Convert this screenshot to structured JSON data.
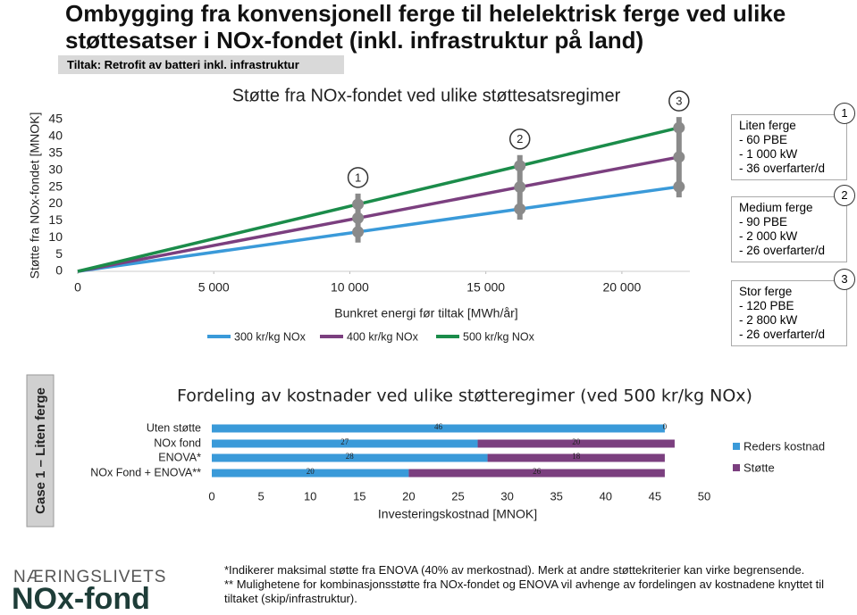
{
  "header": {
    "title": "Ombygging fra konvensjonell ferge til helelektrisk ferge ved ulike støttesatser i NOx-fondet (inkl. infrastruktur på land)",
    "subtitle": "Tiltak: Retrofit av batteri inkl. infrastruktur"
  },
  "chart_data": [
    {
      "type": "line",
      "title": "Støtte fra NOx-fondet ved ulike støttesatsregimer",
      "x_label": "Bunkret energi før tiltak [MWh/år]",
      "y_label": "Støtte fra NOx-fondet [MNOK]",
      "x": [
        0,
        10300,
        16250,
        22100
      ],
      "series": [
        {
          "name": "300 kr/kg NOx",
          "color": "#3a9ad9",
          "values": [
            0,
            11.7,
            18.5,
            25.1
          ]
        },
        {
          "name": "400 kr/kg NOx",
          "color": "#7b3f7f",
          "values": [
            0,
            15.8,
            25.0,
            33.9
          ]
        },
        {
          "name": "500 kr/kg NOx",
          "color": "#1b8c4a",
          "values": [
            0,
            19.9,
            31.3,
            42.6
          ]
        }
      ],
      "annotations": [
        null,
        "1",
        "2",
        "3"
      ],
      "xlim": [
        0,
        22500
      ],
      "ylim": [
        0,
        45
      ],
      "xticks": [
        0,
        {
          "value": 5000,
          "label": "5 000"
        },
        {
          "value": 10000,
          "label": "10 000"
        },
        {
          "value": 15000,
          "label": "15 000"
        },
        {
          "value": 20000,
          "label": "20 000"
        }
      ],
      "yticks": [
        0,
        5,
        10,
        15,
        20,
        25,
        30,
        35,
        40,
        45
      ],
      "grid": false,
      "legend": "bottom"
    },
    {
      "type": "stacked_barh",
      "title": "Fordeling av kostnader ved ulike støtteregimer (ved 500 kr/kg NOx)",
      "x_label": "Investeringskostnad [MNOK]",
      "categories": [
        "Uten støtte",
        "NOx fond",
        "ENOVA*",
        "NOx Fond + ENOVA**"
      ],
      "series": [
        {
          "name": "Reders kostnad",
          "color": "#3a9ad9",
          "values": [
            46,
            27,
            28,
            20
          ]
        },
        {
          "name": "Støtte",
          "color": "#7b3f7f",
          "values": [
            0,
            20,
            18,
            26
          ]
        }
      ],
      "xlim": [
        0,
        50
      ],
      "xticks": [
        0,
        5,
        10,
        15,
        20,
        25,
        30,
        35,
        40,
        45,
        50
      ],
      "grid": false,
      "legend": "right"
    }
  ],
  "case_label": "Case 1 – Liten ferge",
  "ferries": [
    {
      "number": "1",
      "lines": [
        "Liten ferge",
        "- 60 PBE",
        "- 1 000 kW",
        "- 36 overfarter/d"
      ]
    },
    {
      "number": "2",
      "lines": [
        "Medium ferge",
        "- 90 PBE",
        "- 2 000 kW",
        "- 26 overfarter/d"
      ]
    },
    {
      "number": "3",
      "lines": [
        "Stor ferge",
        "- 120 PBE",
        "- 2 800 kW",
        "- 26 overfarter/d"
      ]
    }
  ],
  "footnotes": [
    "*Indikerer maksimal støtte fra ENOVA (40% av merkostnad). Merk at andre støttekriterier kan virke begrensende.",
    "** Mulighetene for kombinasjonsstøtte fra NOx-fondet og ENOVA vil avhenge av fordelingen av kostnadene knyttet til tiltaket (skip/infrastruktur)."
  ],
  "logo": {
    "line1": "NÆRINGSLIVETS",
    "line2": "NOx-fond"
  }
}
